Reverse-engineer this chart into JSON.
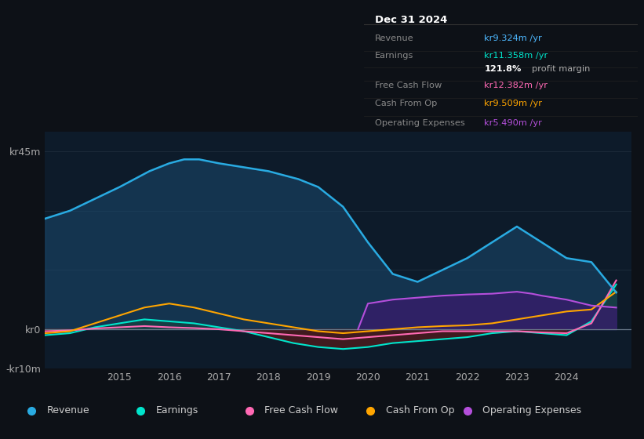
{
  "bg_color": "#0d1117",
  "plot_bg_color": "#0d1b2a",
  "info_box_title": "Dec 31 2024",
  "info_box_rows": [
    {
      "label": "Revenue",
      "value": "kr9.324m /yr",
      "value_color": "#4db8ff"
    },
    {
      "label": "Earnings",
      "value": "kr11.358m /yr",
      "value_color": "#00e5cc"
    },
    {
      "label": "",
      "value": "121.8% profit margin",
      "value_color": "#ffffff",
      "bold_part": "121.8%"
    },
    {
      "label": "Free Cash Flow",
      "value": "kr12.382m /yr",
      "value_color": "#ff69b4"
    },
    {
      "label": "Cash From Op",
      "value": "kr9.509m /yr",
      "value_color": "#ffa500"
    },
    {
      "label": "Operating Expenses",
      "value": "kr5.490m /yr",
      "value_color": "#b44fdb"
    }
  ],
  "ylim": [
    -10,
    50
  ],
  "xlim_start": 2013.5,
  "xlim_end": 2025.3,
  "xtick_positions": [
    2015,
    2016,
    2017,
    2018,
    2019,
    2020,
    2021,
    2022,
    2023,
    2024
  ],
  "line_colors": {
    "revenue": "#29abe2",
    "earnings": "#00e5cc",
    "free_cash_flow": "#ff69b4",
    "cash_from_op": "#ffa500",
    "operating_expenses": "#b44fdb"
  },
  "fill_colors": {
    "revenue_fill": "#1a4a6e",
    "earnings_neg_fill": "#5c1a1a",
    "op_exp_fill": "#3a1a6e"
  },
  "revenue_data": {
    "years": [
      2013.5,
      2014.0,
      2014.5,
      2015.0,
      2015.3,
      2015.6,
      2016.0,
      2016.3,
      2016.6,
      2017.0,
      2017.5,
      2018.0,
      2018.3,
      2018.6,
      2019.0,
      2019.5,
      2020.0,
      2020.5,
      2021.0,
      2021.5,
      2022.0,
      2022.5,
      2023.0,
      2023.5,
      2024.0,
      2024.5,
      2025.0
    ],
    "values": [
      28,
      30,
      33,
      36,
      38,
      40,
      42,
      43,
      43,
      42,
      41,
      40,
      39,
      38,
      36,
      31,
      22,
      14,
      12,
      15,
      18,
      22,
      26,
      22,
      18,
      17,
      9.3
    ]
  },
  "earnings_data": {
    "years": [
      2013.5,
      2014.0,
      2014.5,
      2015.0,
      2015.5,
      2016.0,
      2016.5,
      2017.0,
      2017.5,
      2018.0,
      2018.5,
      2019.0,
      2019.5,
      2020.0,
      2020.5,
      2021.0,
      2021.5,
      2022.0,
      2022.5,
      2023.0,
      2023.5,
      2024.0,
      2024.5,
      2025.0
    ],
    "values": [
      -1.5,
      -1.0,
      0.5,
      1.5,
      2.5,
      2.0,
      1.5,
      0.5,
      -0.5,
      -2.0,
      -3.5,
      -4.5,
      -5.0,
      -4.5,
      -3.5,
      -3.0,
      -2.5,
      -2.0,
      -1.0,
      -0.5,
      -1.0,
      -1.5,
      2.0,
      11.36
    ]
  },
  "free_cash_flow_data": {
    "years": [
      2013.5,
      2014.0,
      2014.5,
      2015.0,
      2015.5,
      2016.0,
      2016.5,
      2017.0,
      2017.5,
      2018.0,
      2018.5,
      2019.0,
      2019.5,
      2020.0,
      2020.5,
      2021.0,
      2021.5,
      2022.0,
      2022.5,
      2023.0,
      2023.5,
      2024.0,
      2024.5,
      2025.0
    ],
    "values": [
      -0.5,
      -0.3,
      0.2,
      0.5,
      0.8,
      0.5,
      0.3,
      0.0,
      -0.5,
      -1.0,
      -1.5,
      -2.0,
      -2.5,
      -2.0,
      -1.5,
      -1.0,
      -0.5,
      -0.5,
      -0.5,
      -0.5,
      -0.8,
      -1.0,
      1.5,
      12.38
    ]
  },
  "cash_from_op_data": {
    "years": [
      2013.5,
      2014.0,
      2014.5,
      2015.0,
      2015.5,
      2016.0,
      2016.5,
      2017.0,
      2017.5,
      2018.0,
      2018.5,
      2019.0,
      2019.5,
      2020.0,
      2020.5,
      2021.0,
      2021.5,
      2022.0,
      2022.5,
      2023.0,
      2023.5,
      2024.0,
      2024.5,
      2025.0
    ],
    "values": [
      -1.0,
      -0.5,
      1.5,
      3.5,
      5.5,
      6.5,
      5.5,
      4.0,
      2.5,
      1.5,
      0.5,
      -0.5,
      -1.0,
      -0.5,
      0.0,
      0.5,
      0.8,
      1.0,
      1.5,
      2.5,
      3.5,
      4.5,
      5.0,
      9.5
    ]
  },
  "op_exp_data": {
    "years": [
      2019.8,
      2020.0,
      2020.5,
      2021.0,
      2021.5,
      2022.0,
      2022.5,
      2023.0,
      2023.3,
      2023.5,
      2024.0,
      2024.5,
      2025.0
    ],
    "values": [
      0.0,
      6.5,
      7.5,
      8.0,
      8.5,
      8.8,
      9.0,
      9.5,
      9.0,
      8.5,
      7.5,
      6.0,
      5.49
    ]
  },
  "legend_items": [
    {
      "label": "Revenue",
      "color": "#29abe2"
    },
    {
      "label": "Earnings",
      "color": "#00e5cc"
    },
    {
      "label": "Free Cash Flow",
      "color": "#ff69b4"
    },
    {
      "label": "Cash From Op",
      "color": "#ffa500"
    },
    {
      "label": "Operating Expenses",
      "color": "#b44fdb"
    }
  ]
}
